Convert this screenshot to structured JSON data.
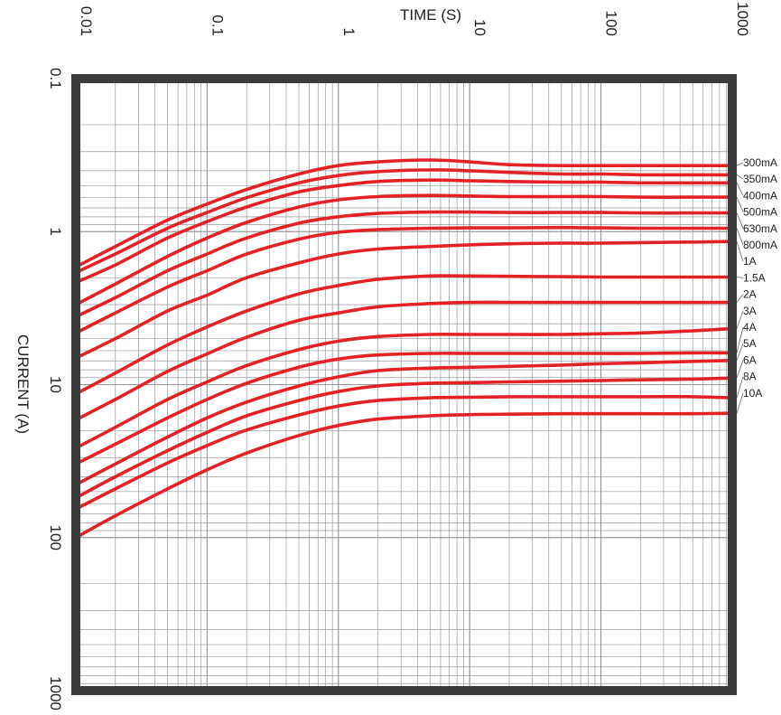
{
  "chart_data": {
    "type": "line",
    "xlabel": "TIME (S)",
    "ylabel": "CURRENT (A)",
    "x_scale": "log",
    "y_scale": "log",
    "xlim": [
      0.01,
      1000
    ],
    "ylim": [
      1000,
      0.1
    ],
    "x_axis_position": "top",
    "x_ticks": [
      0.01,
      0.1,
      1,
      10,
      100,
      1000
    ],
    "x_tick_labels": [
      "0.01",
      "0.1",
      "1",
      "10",
      "100",
      "1000"
    ],
    "y_ticks": [
      0.1,
      1,
      10,
      100,
      1000
    ],
    "y_tick_labels": [
      "0.1",
      "1",
      "10",
      "100",
      "1000"
    ],
    "grid": true,
    "legend": "none; series labels at right end of each curve",
    "colors": {
      "series": "#e32227",
      "frame": "#3c3c3c",
      "grid": "#9a9a9a",
      "text": "#222222"
    },
    "x": [
      0.01,
      0.02,
      0.05,
      0.1,
      0.2,
      0.5,
      1,
      2,
      5,
      10,
      20,
      50,
      100,
      200,
      500,
      1000
    ],
    "series": [
      {
        "name": "300mA",
        "values": [
          1.7,
          1.25,
          0.84,
          0.66,
          0.53,
          0.42,
          0.37,
          0.35,
          0.34,
          0.35,
          0.365,
          0.37,
          0.37,
          0.37,
          0.37,
          0.37
        ]
      },
      {
        "name": "350mA",
        "values": [
          1.85,
          1.4,
          0.95,
          0.75,
          0.6,
          0.48,
          0.43,
          0.405,
          0.395,
          0.4,
          0.41,
          0.42,
          0.42,
          0.425,
          0.425,
          0.425
        ]
      },
      {
        "name": "400mA",
        "values": [
          2.15,
          1.65,
          1.1,
          0.86,
          0.69,
          0.55,
          0.5,
          0.47,
          0.46,
          0.465,
          0.47,
          0.475,
          0.475,
          0.48,
          0.48,
          0.48
        ]
      },
      {
        "name": "500mA",
        "values": [
          3.0,
          2.2,
          1.45,
          1.1,
          0.87,
          0.69,
          0.62,
          0.59,
          0.58,
          0.585,
          0.59,
          0.59,
          0.59,
          0.595,
          0.595,
          0.595
        ]
      },
      {
        "name": "630mA",
        "values": [
          3.6,
          2.7,
          1.8,
          1.4,
          1.1,
          0.88,
          0.8,
          0.76,
          0.745,
          0.745,
          0.75,
          0.75,
          0.75,
          0.755,
          0.755,
          0.755
        ]
      },
      {
        "name": "800mA",
        "values": [
          4.6,
          3.4,
          2.3,
          1.8,
          1.4,
          1.12,
          1.01,
          0.97,
          0.95,
          0.945,
          0.945,
          0.94,
          0.945,
          0.95,
          0.95,
          0.95
        ]
      },
      {
        "name": "1A",
        "values": [
          6.7,
          5.0,
          3.3,
          2.6,
          2.0,
          1.6,
          1.4,
          1.3,
          1.25,
          1.22,
          1.2,
          1.19,
          1.19,
          1.18,
          1.17,
          1.16
        ]
      },
      {
        "name": "1.5A",
        "values": [
          11.5,
          8.4,
          5.5,
          4.2,
          3.3,
          2.55,
          2.25,
          2.05,
          1.95,
          1.95,
          1.96,
          1.97,
          1.98,
          1.98,
          1.98,
          1.98
        ]
      },
      {
        "name": "2A",
        "values": [
          17,
          12.5,
          8.2,
          6.3,
          4.9,
          3.8,
          3.4,
          3.1,
          2.95,
          2.9,
          2.9,
          2.9,
          2.9,
          2.9,
          2.9,
          2.9
        ]
      },
      {
        "name": "3A",
        "values": [
          26,
          19,
          12.5,
          9.6,
          7.5,
          5.9,
          5.2,
          4.85,
          4.7,
          4.7,
          4.7,
          4.7,
          4.65,
          4.6,
          4.45,
          4.3
        ]
      },
      {
        "name": "4A",
        "values": [
          33,
          24.5,
          16.5,
          12.5,
          9.8,
          7.7,
          6.8,
          6.4,
          6.25,
          6.25,
          6.25,
          6.25,
          6.25,
          6.25,
          6.2,
          6.2
        ]
      },
      {
        "name": "5A",
        "values": [
          45,
          33,
          22,
          16.5,
          13,
          10.2,
          8.9,
          8.1,
          7.8,
          7.7,
          7.6,
          7.45,
          7.3,
          7.2,
          7.05,
          6.95
        ]
      },
      {
        "name": "6A",
        "values": [
          55,
          40,
          27,
          20.5,
          16,
          12.7,
          11.1,
          10.2,
          9.8,
          9.7,
          9.6,
          9.5,
          9.4,
          9.3,
          9.2,
          9.05
        ]
      },
      {
        "name": "8A",
        "values": [
          65,
          48,
          32.5,
          25,
          19.8,
          15.8,
          13.8,
          12.7,
          12.2,
          12.1,
          12.0,
          12.0,
          12.0,
          12.0,
          12.0,
          12.2
        ]
      },
      {
        "name": "10A",
        "values": [
          100,
          72,
          48,
          36,
          28,
          21.5,
          18.5,
          16.8,
          16.0,
          15.7,
          15.6,
          15.5,
          15.5,
          15.5,
          15.5,
          15.4
        ]
      }
    ]
  }
}
